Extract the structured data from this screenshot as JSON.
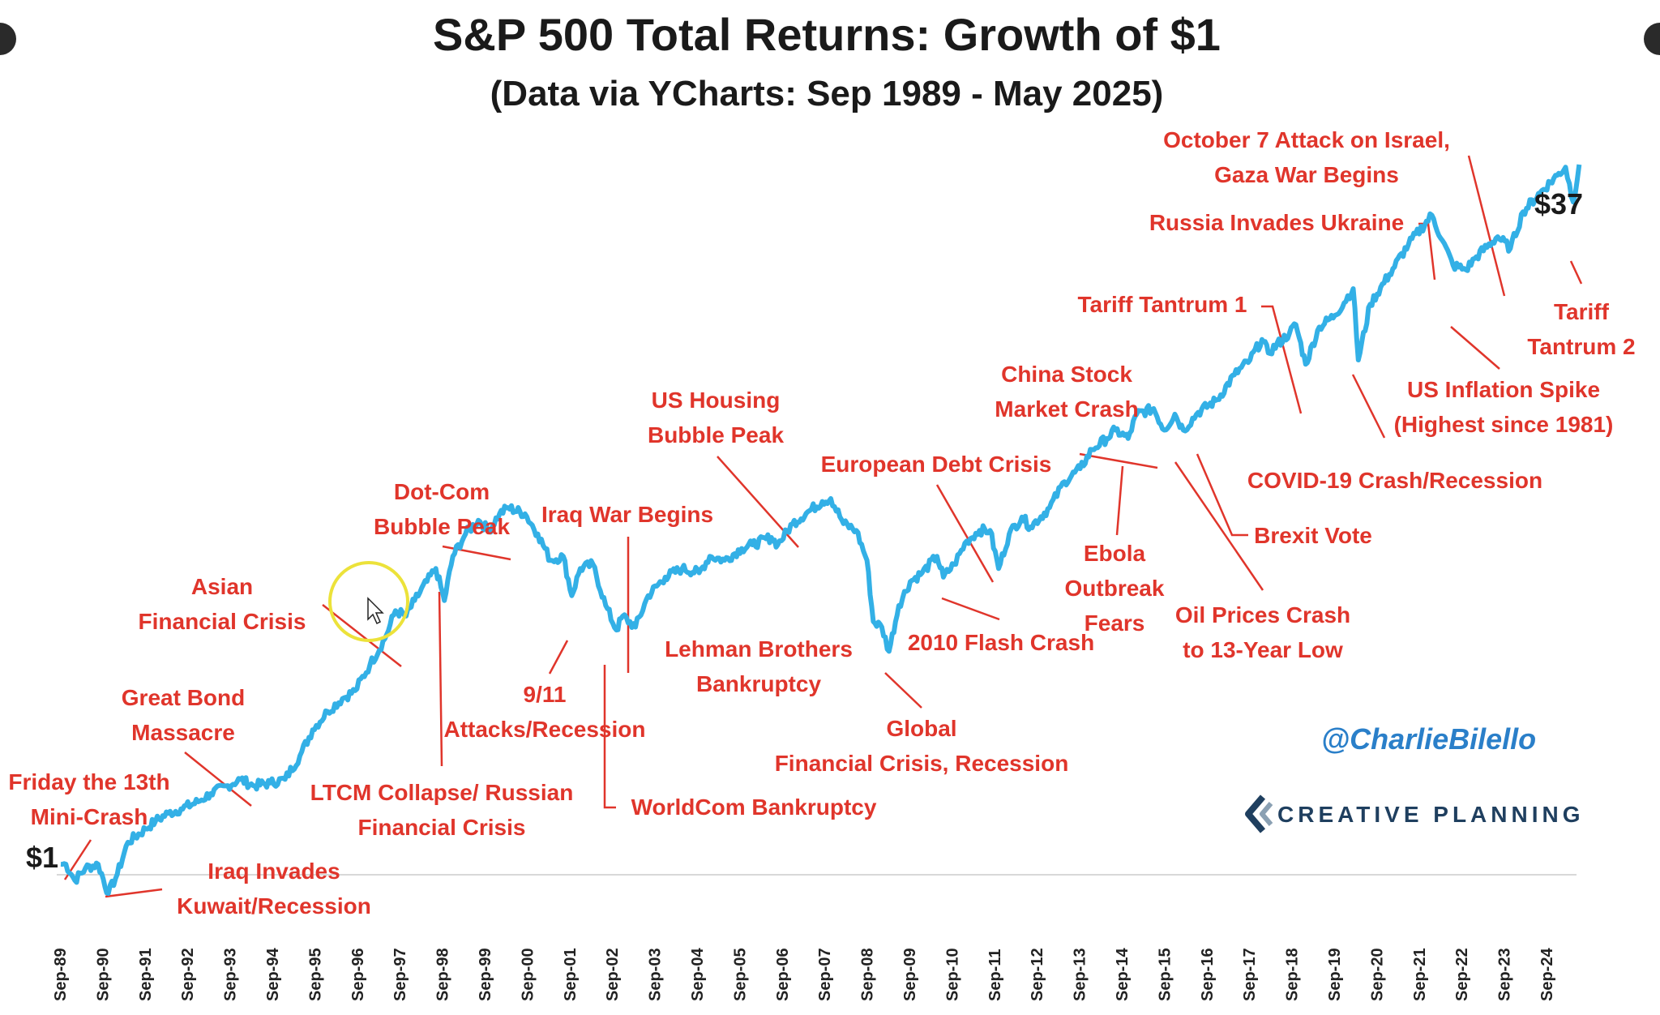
{
  "chart_data": {
    "type": "line",
    "title": "S&P 500 Total Returns: Growth of $1",
    "subtitle": "(Data via YCharts: Sep 1989 - May 2025)",
    "color": "#33b0e6",
    "annotation_color": "#e0352b",
    "x_tick_labels": [
      "Sep-89",
      "Sep-90",
      "Sep-91",
      "Sep-92",
      "Sep-93",
      "Sep-94",
      "Sep-95",
      "Sep-96",
      "Sep-97",
      "Sep-98",
      "Sep-99",
      "Sep-00",
      "Sep-01",
      "Sep-02",
      "Sep-03",
      "Sep-04",
      "Sep-05",
      "Sep-06",
      "Sep-07",
      "Sep-08",
      "Sep-09",
      "Sep-10",
      "Sep-11",
      "Sep-12",
      "Sep-13",
      "Sep-14",
      "Sep-15",
      "Sep-16",
      "Sep-17",
      "Sep-18",
      "Sep-19",
      "Sep-20",
      "Sep-21",
      "Sep-22",
      "Sep-23",
      "Sep-24"
    ],
    "series": [
      {
        "values": [
          [
            1989.67,
            1.0
          ],
          [
            1989.79,
            1.0
          ],
          [
            1990.0,
            0.92
          ],
          [
            1990.25,
            0.98
          ],
          [
            1990.55,
            1.0
          ],
          [
            1990.79,
            0.86
          ],
          [
            1991.0,
            0.95
          ],
          [
            1991.25,
            1.12
          ],
          [
            1991.67,
            1.2
          ],
          [
            1991.9,
            1.25
          ],
          [
            1992.2,
            1.3
          ],
          [
            1992.5,
            1.33
          ],
          [
            1992.9,
            1.38
          ],
          [
            1993.2,
            1.44
          ],
          [
            1993.6,
            1.5
          ],
          [
            1993.9,
            1.55
          ],
          [
            1994.2,
            1.5
          ],
          [
            1994.6,
            1.52
          ],
          [
            1994.95,
            1.55
          ],
          [
            1995.3,
            1.75
          ],
          [
            1995.6,
            2.0
          ],
          [
            1995.95,
            2.2
          ],
          [
            1996.3,
            2.35
          ],
          [
            1996.6,
            2.45
          ],
          [
            1996.95,
            2.8
          ],
          [
            1997.3,
            3.2
          ],
          [
            1997.55,
            3.7
          ],
          [
            1997.8,
            3.6
          ],
          [
            1998.0,
            3.9
          ],
          [
            1998.5,
            4.6
          ],
          [
            1998.7,
            3.9
          ],
          [
            1998.9,
            4.9
          ],
          [
            1999.2,
            5.5
          ],
          [
            1999.5,
            5.9
          ],
          [
            1999.75,
            5.6
          ],
          [
            2000.0,
            6.1
          ],
          [
            2000.2,
            6.3
          ],
          [
            2000.6,
            6.1
          ],
          [
            2000.9,
            5.5
          ],
          [
            2001.2,
            4.8
          ],
          [
            2001.5,
            4.9
          ],
          [
            2001.7,
            4.0
          ],
          [
            2001.9,
            4.6
          ],
          [
            2002.2,
            4.7
          ],
          [
            2002.5,
            3.8
          ],
          [
            2002.75,
            3.35
          ],
          [
            2002.9,
            3.6
          ],
          [
            2003.2,
            3.4
          ],
          [
            2003.5,
            4.0
          ],
          [
            2003.9,
            4.4
          ],
          [
            2004.3,
            4.6
          ],
          [
            2004.7,
            4.5
          ],
          [
            2004.95,
            4.9
          ],
          [
            2005.3,
            4.8
          ],
          [
            2005.7,
            5.1
          ],
          [
            2005.95,
            5.2
          ],
          [
            2006.4,
            5.4
          ],
          [
            2006.55,
            5.2
          ],
          [
            2006.9,
            5.8
          ],
          [
            2007.3,
            6.2
          ],
          [
            2007.6,
            6.5
          ],
          [
            2007.8,
            6.6
          ],
          [
            2008.1,
            5.8
          ],
          [
            2008.4,
            5.6
          ],
          [
            2008.65,
            4.8
          ],
          [
            2008.8,
            3.5
          ],
          [
            2009.0,
            3.4
          ],
          [
            2009.17,
            3.0
          ],
          [
            2009.4,
            3.8
          ],
          [
            2009.67,
            4.3
          ],
          [
            2009.95,
            4.5
          ],
          [
            2010.3,
            4.9
          ],
          [
            2010.45,
            4.4
          ],
          [
            2010.7,
            4.7
          ],
          [
            2011.0,
            5.3
          ],
          [
            2011.3,
            5.6
          ],
          [
            2011.55,
            5.6
          ],
          [
            2011.75,
            4.6
          ],
          [
            2012.0,
            5.5
          ],
          [
            2012.3,
            6.0
          ],
          [
            2012.5,
            5.7
          ],
          [
            2012.95,
            6.3
          ],
          [
            2013.3,
            7.2
          ],
          [
            2013.67,
            7.7
          ],
          [
            2013.95,
            8.5
          ],
          [
            2014.3,
            9.0
          ],
          [
            2014.5,
            9.4
          ],
          [
            2014.8,
            9.0
          ],
          [
            2015.0,
            10.2
          ],
          [
            2015.4,
            10.5
          ],
          [
            2015.65,
            9.4
          ],
          [
            2015.9,
            10.2
          ],
          [
            2016.1,
            9.4
          ],
          [
            2016.45,
            10.3
          ],
          [
            2016.9,
            11.0
          ],
          [
            2017.3,
            12.5
          ],
          [
            2017.67,
            13.5
          ],
          [
            2017.95,
            15.0
          ],
          [
            2018.1,
            14.0
          ],
          [
            2018.6,
            15.5
          ],
          [
            2018.75,
            16.2
          ],
          [
            2018.98,
            13.2
          ],
          [
            2019.3,
            16.0
          ],
          [
            2019.67,
            17.0
          ],
          [
            2020.1,
            19.5
          ],
          [
            2020.22,
            13.5
          ],
          [
            2020.5,
            18.0
          ],
          [
            2020.95,
            21.0
          ],
          [
            2021.4,
            24.5
          ],
          [
            2021.95,
            28.5
          ],
          [
            2022.2,
            25.0
          ],
          [
            2022.45,
            22.0
          ],
          [
            2022.75,
            21.5
          ],
          [
            2023.0,
            23.0
          ],
          [
            2023.5,
            25.5
          ],
          [
            2023.8,
            24.0
          ],
          [
            2024.1,
            29.0
          ],
          [
            2024.5,
            32.0
          ],
          [
            2024.9,
            35.0
          ],
          [
            2025.1,
            36.5
          ],
          [
            2025.28,
            30.5
          ],
          [
            2025.42,
            37.0
          ]
        ]
      }
    ],
    "start_label": "$1",
    "end_label": "$37",
    "grid": false,
    "legend": "none",
    "annotations": [
      {
        "lines": [
          "Friday the 13th",
          "Mini-Crash"
        ]
      },
      {
        "lines": [
          "Iraq Invades",
          "Kuwait/Recession"
        ]
      },
      {
        "lines": [
          "Great Bond",
          "Massacre"
        ]
      },
      {
        "lines": [
          "Asian",
          "Financial Crisis"
        ]
      },
      {
        "lines": [
          "LTCM Collapse/ Russian",
          "Financial Crisis"
        ]
      },
      {
        "lines": [
          "Dot-Com",
          "Bubble Peak"
        ]
      },
      {
        "lines": [
          "9/11",
          "Attacks/Recession"
        ]
      },
      {
        "lines": [
          "Iraq War Begins"
        ]
      },
      {
        "lines": [
          "WorldCom Bankruptcy"
        ]
      },
      {
        "lines": [
          "Lehman Brothers",
          "Bankruptcy"
        ]
      },
      {
        "lines": [
          "US Housing",
          "Bubble Peak"
        ]
      },
      {
        "lines": [
          "Global",
          "Financial Crisis, Recession"
        ]
      },
      {
        "lines": [
          "European Debt Crisis"
        ]
      },
      {
        "lines": [
          "2010 Flash Crash"
        ]
      },
      {
        "lines": [
          "China Stock",
          "Market Crash"
        ]
      },
      {
        "lines": [
          "Ebola",
          "Outbreak",
          "Fears"
        ]
      },
      {
        "lines": [
          "Oil Prices Crash",
          "to 13-Year Low"
        ]
      },
      {
        "lines": [
          "Brexit Vote"
        ]
      },
      {
        "lines": [
          "Tariff Tantrum 1"
        ]
      },
      {
        "lines": [
          "COVID-19 Crash/Recession"
        ]
      },
      {
        "lines": [
          "Russia Invades Ukraine"
        ]
      },
      {
        "lines": [
          "US Inflation Spike",
          "(Highest since 1981)"
        ]
      },
      {
        "lines": [
          "October 7 Attack on Israel,",
          "Gaza War Begins"
        ]
      },
      {
        "lines": [
          "Tariff",
          "Tantrum 2"
        ]
      }
    ]
  },
  "watermark": {
    "handle": "@CharlieBilello",
    "brand": "CREATIVE PLANNING"
  }
}
